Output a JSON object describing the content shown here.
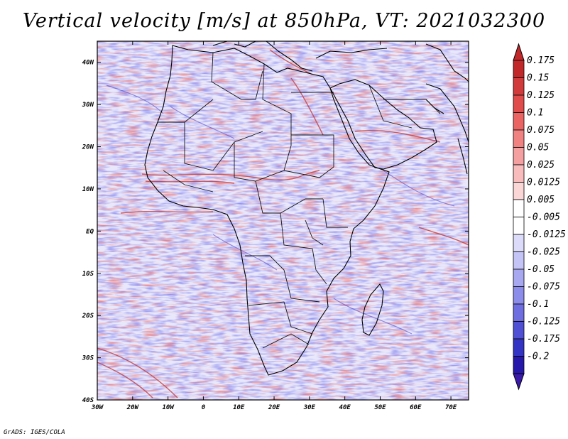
{
  "title": "Vertical velocity [m/s] at 850hPa, VT: 2021032300",
  "footer": "GrADS: IGES/COLA",
  "map": {
    "lon_range": [
      -30,
      75
    ],
    "lat_range": [
      -40,
      45
    ],
    "lat_ticks": [
      "40N",
      "30N",
      "20N",
      "10N",
      "EQ",
      "10S",
      "20S",
      "30S",
      "40S"
    ],
    "lon_ticks": [
      "30W",
      "20W",
      "10W",
      "0",
      "10E",
      "20E",
      "30E",
      "40E",
      "50E",
      "60E",
      "70E"
    ]
  },
  "colorbar": {
    "top_arrow_color": "#c0282a",
    "bottom_arrow_color": "#3a1aa8",
    "boxes": [
      {
        "label": "0.175",
        "color": "#c0282a"
      },
      {
        "label": "0.15",
        "color": "#d23b3b"
      },
      {
        "label": "0.125",
        "color": "#e04c4c"
      },
      {
        "label": "0.1",
        "color": "#ea6464"
      },
      {
        "label": "0.075",
        "color": "#f08282"
      },
      {
        "label": "0.05",
        "color": "#f4a0a0"
      },
      {
        "label": "0.025",
        "color": "#f8bcbc"
      },
      {
        "label": "0.0125",
        "color": "#fbd6d6"
      },
      {
        "label": "0.005",
        "color": "#ffffff"
      },
      {
        "label": "-0.005",
        "color": "#ffffff"
      },
      {
        "label": "-0.0125",
        "color": "#dcdcfa"
      },
      {
        "label": "-0.025",
        "color": "#c4c4f6"
      },
      {
        "label": "-0.05",
        "color": "#a8a8f0"
      },
      {
        "label": "-0.075",
        "color": "#8c8cea"
      },
      {
        "label": "-0.1",
        "color": "#6e6ee0"
      },
      {
        "label": "-0.125",
        "color": "#5050d4"
      },
      {
        "label": "-0.175",
        "color": "#3434c4"
      },
      {
        "label": "-0.2",
        "color": "#2618aa"
      }
    ]
  }
}
